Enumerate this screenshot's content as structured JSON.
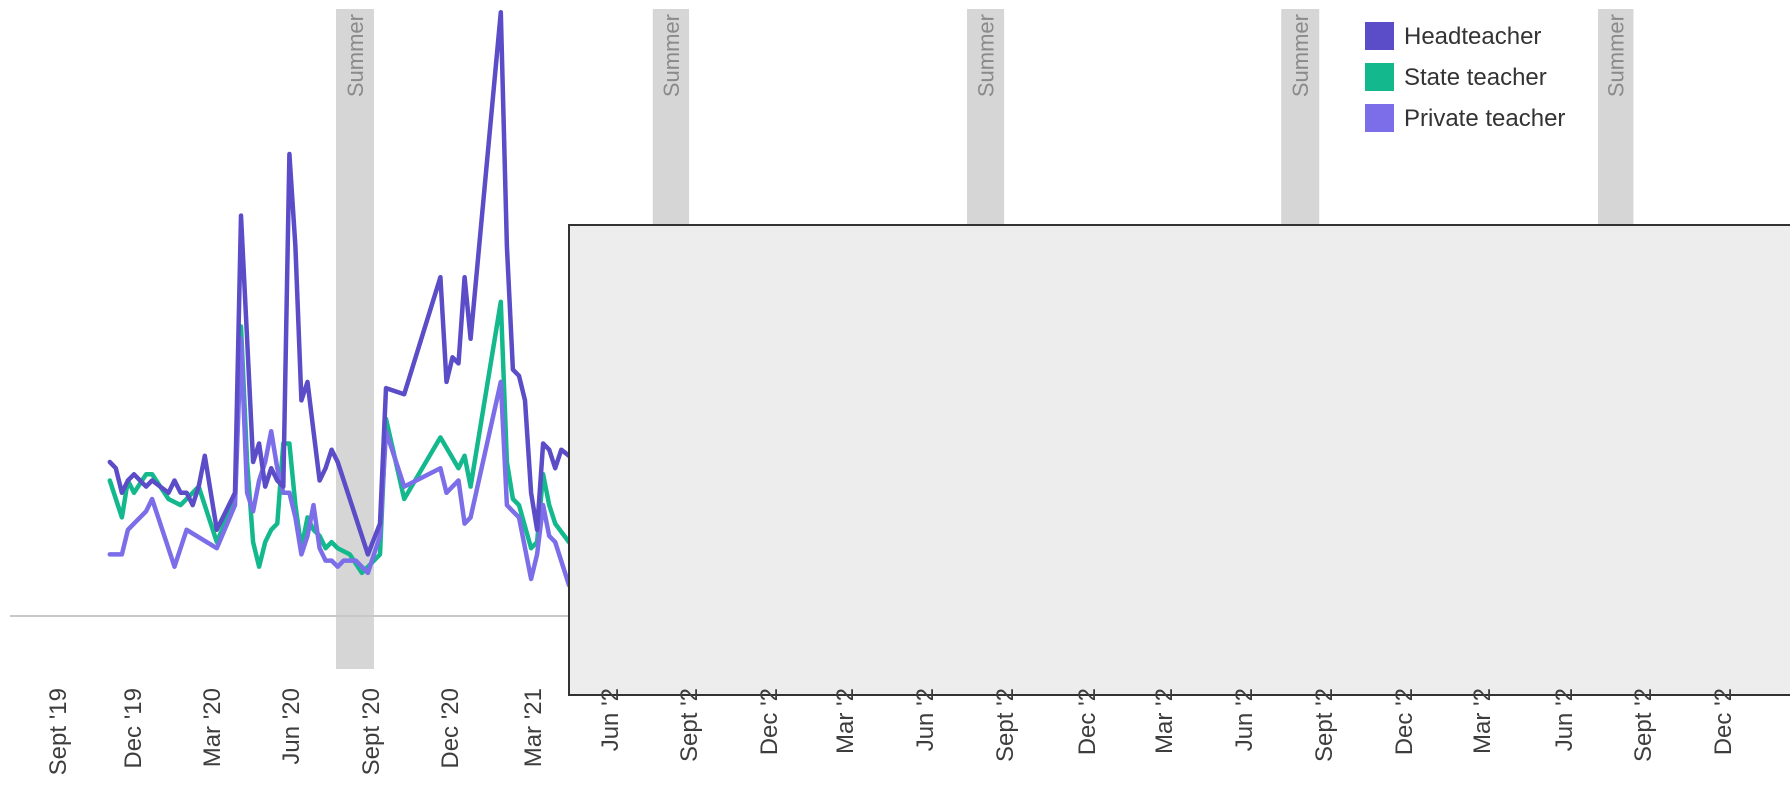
{
  "chart_data": {
    "type": "line",
    "title": "",
    "xlabel": "",
    "ylabel": "",
    "x_ticks": [
      "Sept '19",
      "Dec '19",
      "Mar '20",
      "Jun '20",
      "Sept '20",
      "Dec '20",
      "Mar '21",
      "Jun '2",
      "Sept '2",
      "Dec '2",
      "Mar '2",
      "Jun '2",
      "Sept '2",
      "Dec '2",
      "Mar '2",
      "Jun '2",
      "Sept '2",
      "Dec '2",
      "Mar '2",
      "Jun '2",
      "Sept '2",
      "Dec '2"
    ],
    "xlim": [
      "2019-09-01",
      "2025-02-10"
    ],
    "ylim": [
      0,
      100
    ],
    "grid": false,
    "legend": "top-right",
    "summer_bands": [
      {
        "label": "Summer",
        "start": "2020-07-19",
        "end": "2020-09-01"
      },
      {
        "label": "Summer",
        "start": "2021-07-21",
        "end": "2021-09-01"
      },
      {
        "label": "Summer",
        "start": "2022-07-20",
        "end": "2022-09-01"
      },
      {
        "label": "Summer",
        "start": "2023-07-19",
        "end": "2023-09-01"
      },
      {
        "label": "Summer",
        "start": "2024-07-20",
        "end": "2024-08-30"
      }
    ],
    "obscured_region": {
      "from": "2021-04-15",
      "to": "2025-02-10"
    },
    "series": [
      {
        "name": "Headteacher",
        "color": "#5b4cc8",
        "points": [
          [
            "2019-10-31",
            25
          ],
          [
            "2019-11-07",
            24
          ],
          [
            "2019-11-14",
            20
          ],
          [
            "2019-11-21",
            22
          ],
          [
            "2019-11-28",
            23
          ],
          [
            "2019-12-12",
            21
          ],
          [
            "2019-12-19",
            22
          ],
          [
            "2020-01-07",
            20
          ],
          [
            "2020-01-14",
            22
          ],
          [
            "2020-01-21",
            20
          ],
          [
            "2020-01-28",
            20
          ],
          [
            "2020-02-04",
            18
          ],
          [
            "2020-02-11",
            21
          ],
          [
            "2020-02-18",
            26
          ],
          [
            "2020-03-03",
            14
          ],
          [
            "2020-03-24",
            20
          ],
          [
            "2020-03-31",
            65
          ],
          [
            "2020-04-07",
            45
          ],
          [
            "2020-04-14",
            25
          ],
          [
            "2020-04-21",
            28
          ],
          [
            "2020-04-28",
            21
          ],
          [
            "2020-05-05",
            24
          ],
          [
            "2020-05-12",
            22
          ],
          [
            "2020-05-19",
            21
          ],
          [
            "2020-05-26",
            75
          ],
          [
            "2020-06-02",
            60
          ],
          [
            "2020-06-09",
            35
          ],
          [
            "2020-06-16",
            38
          ],
          [
            "2020-06-23",
            30
          ],
          [
            "2020-06-30",
            22
          ],
          [
            "2020-07-07",
            24
          ],
          [
            "2020-07-14",
            27
          ],
          [
            "2020-07-21",
            25
          ],
          [
            "2020-08-25",
            10
          ],
          [
            "2020-09-08",
            15
          ],
          [
            "2020-09-15",
            37
          ],
          [
            "2020-10-06",
            36
          ],
          [
            "2020-11-17",
            55
          ],
          [
            "2020-11-24",
            38
          ],
          [
            "2020-12-01",
            42
          ],
          [
            "2020-12-08",
            41
          ],
          [
            "2020-12-15",
            55
          ],
          [
            "2020-12-22",
            45
          ],
          [
            "2021-01-26",
            98
          ],
          [
            "2021-02-02",
            60
          ],
          [
            "2021-02-09",
            40
          ],
          [
            "2021-02-16",
            39
          ],
          [
            "2021-02-23",
            35
          ],
          [
            "2021-03-02",
            20
          ],
          [
            "2021-03-09",
            14
          ],
          [
            "2021-03-16",
            28
          ],
          [
            "2021-03-23",
            27
          ],
          [
            "2021-03-30",
            24
          ],
          [
            "2021-04-06",
            27
          ],
          [
            "2021-04-15",
            26
          ]
        ]
      },
      {
        "name": "State teacher",
        "color": "#14b88d",
        "points": [
          [
            "2019-10-31",
            22
          ],
          [
            "2019-11-14",
            16
          ],
          [
            "2019-11-21",
            22
          ],
          [
            "2019-11-28",
            20
          ],
          [
            "2019-12-12",
            23
          ],
          [
            "2019-12-19",
            23
          ],
          [
            "2020-01-07",
            19
          ],
          [
            "2020-01-21",
            18
          ],
          [
            "2020-02-11",
            21
          ],
          [
            "2020-03-03",
            12
          ],
          [
            "2020-03-24",
            19
          ],
          [
            "2020-03-31",
            47
          ],
          [
            "2020-04-07",
            25
          ],
          [
            "2020-04-14",
            12
          ],
          [
            "2020-04-21",
            8
          ],
          [
            "2020-04-28",
            12
          ],
          [
            "2020-05-05",
            14
          ],
          [
            "2020-05-12",
            15
          ],
          [
            "2020-05-19",
            28
          ],
          [
            "2020-05-26",
            28
          ],
          [
            "2020-06-02",
            18
          ],
          [
            "2020-06-09",
            11
          ],
          [
            "2020-06-16",
            16
          ],
          [
            "2020-06-23",
            14
          ],
          [
            "2020-06-30",
            13
          ],
          [
            "2020-07-07",
            11
          ],
          [
            "2020-07-14",
            12
          ],
          [
            "2020-07-21",
            11
          ],
          [
            "2020-08-04",
            10
          ],
          [
            "2020-08-18",
            7
          ],
          [
            "2020-09-08",
            10
          ],
          [
            "2020-09-15",
            32
          ],
          [
            "2020-10-06",
            19
          ],
          [
            "2020-11-17",
            29
          ],
          [
            "2020-12-08",
            24
          ],
          [
            "2020-12-15",
            26
          ],
          [
            "2020-12-22",
            21
          ],
          [
            "2021-01-26",
            51
          ],
          [
            "2021-02-02",
            25
          ],
          [
            "2021-02-09",
            19
          ],
          [
            "2021-02-16",
            18
          ],
          [
            "2021-03-02",
            11
          ],
          [
            "2021-03-09",
            12
          ],
          [
            "2021-03-16",
            23
          ],
          [
            "2021-03-23",
            18
          ],
          [
            "2021-03-30",
            15
          ],
          [
            "2021-04-15",
            12
          ]
        ]
      },
      {
        "name": "Private teacher",
        "color": "#7b6ee8",
        "points": [
          [
            "2019-10-31",
            10
          ],
          [
            "2019-11-14",
            10
          ],
          [
            "2019-11-21",
            14
          ],
          [
            "2019-11-28",
            15
          ],
          [
            "2019-12-12",
            17
          ],
          [
            "2019-12-19",
            19
          ],
          [
            "2020-01-14",
            8
          ],
          [
            "2020-01-28",
            14
          ],
          [
            "2020-03-03",
            11
          ],
          [
            "2020-03-24",
            18
          ],
          [
            "2020-03-31",
            45
          ],
          [
            "2020-04-07",
            20
          ],
          [
            "2020-04-14",
            17
          ],
          [
            "2020-04-21",
            22
          ],
          [
            "2020-04-28",
            25
          ],
          [
            "2020-05-05",
            30
          ],
          [
            "2020-05-12",
            24
          ],
          [
            "2020-05-19",
            20
          ],
          [
            "2020-05-26",
            20
          ],
          [
            "2020-06-02",
            16
          ],
          [
            "2020-06-09",
            10
          ],
          [
            "2020-06-16",
            13
          ],
          [
            "2020-06-23",
            18
          ],
          [
            "2020-06-30",
            11
          ],
          [
            "2020-07-07",
            9
          ],
          [
            "2020-07-14",
            9
          ],
          [
            "2020-07-21",
            8
          ],
          [
            "2020-07-28",
            9
          ],
          [
            "2020-08-11",
            9
          ],
          [
            "2020-08-25",
            7
          ],
          [
            "2020-09-08",
            13
          ],
          [
            "2020-09-15",
            30
          ],
          [
            "2020-10-06",
            21
          ],
          [
            "2020-11-17",
            24
          ],
          [
            "2020-11-24",
            20
          ],
          [
            "2020-12-01",
            21
          ],
          [
            "2020-12-08",
            22
          ],
          [
            "2020-12-15",
            15
          ],
          [
            "2020-12-22",
            16
          ],
          [
            "2021-01-26",
            38
          ],
          [
            "2021-02-02",
            18
          ],
          [
            "2021-02-09",
            17
          ],
          [
            "2021-02-16",
            16
          ],
          [
            "2021-03-02",
            6
          ],
          [
            "2021-03-09",
            10
          ],
          [
            "2021-03-16",
            18
          ],
          [
            "2021-03-23",
            13
          ],
          [
            "2021-03-30",
            12
          ],
          [
            "2021-04-15",
            5
          ]
        ]
      }
    ]
  }
}
